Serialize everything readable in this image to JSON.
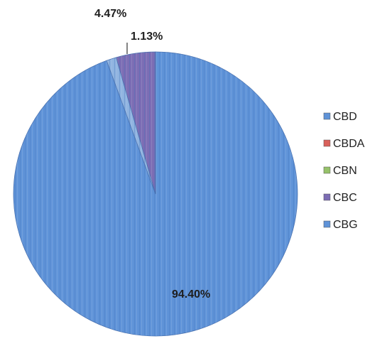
{
  "chart_data": {
    "type": "pie",
    "title": "",
    "categories": [
      "CBD",
      "CBDA",
      "CBN",
      "CBC",
      "CBG"
    ],
    "values": [
      94.4,
      0.0,
      0.0,
      4.47,
      1.13
    ],
    "data_labels": [
      "94.40%",
      "",
      "",
      "4.47%",
      "1.13%"
    ],
    "colors": [
      "#5f93d8",
      "#d9605a",
      "#96c26a",
      "#7c6db4",
      "#5f93d8"
    ],
    "legend": {
      "position": "right",
      "entries": [
        "CBD",
        "CBDA",
        "CBN",
        "CBC",
        "CBG"
      ]
    }
  }
}
